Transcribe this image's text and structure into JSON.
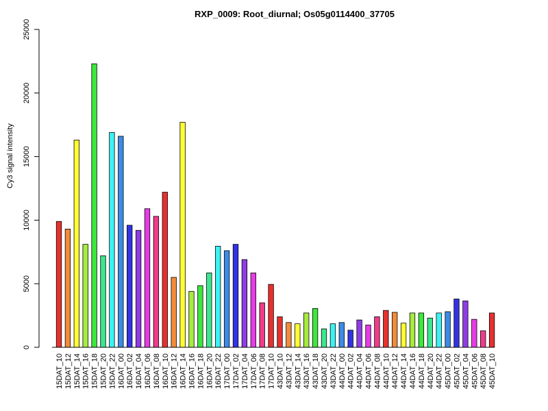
{
  "chart_data": {
    "type": "bar",
    "title": "RXP_0009: Root_diurnal; Os05g0114400_37705",
    "xlabel": "",
    "ylabel": "Cy3 signal intensity",
    "ylim": [
      0,
      25000
    ],
    "yticks": [
      0,
      5000,
      10000,
      15000,
      20000,
      25000
    ],
    "grid": false,
    "categories": [
      "15DAT_10",
      "15DAT_12",
      "15DAT_14",
      "15DAT_16",
      "15DAT_18",
      "15DAT_20",
      "15DAT_22",
      "16DAT_00",
      "16DAT_02",
      "16DAT_04",
      "16DAT_06",
      "16DAT_08",
      "16DAT_10",
      "16DAT_12",
      "16DAT_14",
      "16DAT_16",
      "16DAT_18",
      "16DAT_20",
      "16DAT_22",
      "17DAT_00",
      "17DAT_02",
      "17DAT_04",
      "17DAT_06",
      "17DAT_08",
      "17DAT_10",
      "43DAT_10",
      "43DAT_12",
      "43DAT_14",
      "43DAT_16",
      "43DAT_18",
      "43DAT_20",
      "43DAT_22",
      "44DAT_00",
      "44DAT_02",
      "44DAT_04",
      "44DAT_06",
      "44DAT_08",
      "44DAT_10",
      "44DAT_12",
      "44DAT_14",
      "44DAT_16",
      "44DAT_18",
      "44DAT_20",
      "44DAT_22",
      "45DAT_00",
      "45DAT_02",
      "45DAT_04",
      "45DAT_06",
      "45DAT_08",
      "45DAT_10"
    ],
    "values": [
      9900,
      9300,
      16300,
      8100,
      22300,
      7200,
      16900,
      16600,
      9600,
      9200,
      10900,
      10300,
      12200,
      5500,
      17700,
      4400,
      4850,
      5850,
      7950,
      7600,
      8100,
      6900,
      5850,
      3500,
      4950,
      2400,
      1950,
      1850,
      2700,
      3050,
      1450,
      1850,
      1950,
      1350,
      2150,
      1750,
      2400,
      2900,
      2750,
      1900,
      2700,
      2700,
      2300,
      2700,
      2800,
      3800,
      3650,
      2200,
      1300,
      2700
    ],
    "colors": [
      "#E6312F",
      "#F28B3A",
      "#FFFF33",
      "#A6EB3F",
      "#3CE83C",
      "#3CE68E",
      "#3CF2F2",
      "#3C8BE6",
      "#3333E6",
      "#8F3CE6",
      "#E63CE6",
      "#F03C8B",
      "#E6312F",
      "#F28B3A",
      "#FFFF33",
      "#A6EB3F",
      "#3CE83C",
      "#3CE68E",
      "#3CF2F2",
      "#3C8BE6",
      "#3333E6",
      "#8F3CE6",
      "#E63CE6",
      "#F03C8B",
      "#E6312F",
      "#E6312F",
      "#F28B3A",
      "#FFFF33",
      "#A6EB3F",
      "#3CE83C",
      "#3CE68E",
      "#3CF2F2",
      "#3C8BE6",
      "#3333E6",
      "#8F3CE6",
      "#E63CE6",
      "#F03C8B",
      "#E6312F",
      "#F28B3A",
      "#FFFF33",
      "#A6EB3F",
      "#3CE83C",
      "#3CE68E",
      "#3CF2F2",
      "#3C8BE6",
      "#3333E6",
      "#8F3CE6",
      "#E63CE6",
      "#F03C8B",
      "#E6312F"
    ]
  }
}
